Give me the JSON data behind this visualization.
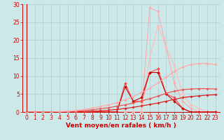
{
  "x": [
    0,
    1,
    2,
    3,
    4,
    5,
    6,
    7,
    8,
    9,
    10,
    11,
    12,
    13,
    14,
    15,
    16,
    17,
    18,
    19,
    20,
    21,
    22,
    23
  ],
  "bg_color": "#cce8e8",
  "grid_color": "#aacccc",
  "line_color": "#cc0000",
  "yticks": [
    0,
    5,
    10,
    15,
    20,
    25,
    30
  ],
  "ylim": [
    0,
    30
  ],
  "xlim": [
    -0.5,
    23.5
  ],
  "xlabel": "Vent moyen/en rafales ( km/h )",
  "xlabel_fontsize": 6.5,
  "tick_fontsize": 5.5,
  "series": [
    {
      "y": [
        0,
        0,
        0,
        0,
        0,
        0,
        0,
        0,
        0,
        0,
        0,
        0,
        0,
        0,
        0,
        29,
        28,
        18,
        8,
        3,
        1,
        0,
        0,
        0
      ],
      "color": "#ffaaaa",
      "lw": 0.8,
      "ms": 2.0
    },
    {
      "y": [
        0,
        0,
        0,
        0,
        0,
        0,
        0,
        0,
        0,
        0,
        0,
        0,
        0,
        0,
        0,
        15,
        24,
        18,
        13,
        5,
        2,
        1,
        0,
        0
      ],
      "color": "#ffbbbb",
      "lw": 0.8,
      "ms": 2.0
    },
    {
      "y": [
        0,
        0,
        0,
        0,
        0,
        0,
        0,
        0,
        0,
        0,
        0,
        0,
        8,
        3,
        3,
        11,
        12,
        5,
        4,
        1,
        0,
        0,
        0,
        0
      ],
      "color": "#ff4444",
      "lw": 0.8,
      "ms": 2.0
    },
    {
      "y": [
        0,
        0,
        0,
        0,
        0,
        0,
        0,
        0,
        0,
        0,
        0,
        0,
        7,
        3,
        4,
        11,
        11,
        5,
        3,
        1,
        0,
        0,
        0,
        0
      ],
      "color": "#cc0000",
      "lw": 0.8,
      "ms": 2.0
    },
    {
      "y": [
        0,
        0,
        0,
        0,
        0,
        0,
        0,
        0.1,
        0.2,
        0.3,
        0.5,
        0.7,
        1.0,
        1.3,
        1.7,
        2.1,
        2.5,
        3.0,
        3.5,
        4.0,
        4.3,
        4.5,
        4.7,
        4.8
      ],
      "color": "#dd2222",
      "lw": 0.9,
      "ms": 1.8
    },
    {
      "y": [
        0,
        0,
        0,
        0,
        0,
        0.1,
        0.2,
        0.4,
        0.6,
        0.9,
        1.2,
        1.6,
        2.0,
        2.5,
        3.1,
        3.7,
        4.4,
        5.2,
        5.8,
        6.2,
        6.4,
        6.5,
        6.5,
        6.4
      ],
      "color": "#ee5555",
      "lw": 0.9,
      "ms": 1.8
    },
    {
      "y": [
        0,
        0,
        0,
        0,
        0.1,
        0.2,
        0.4,
        0.7,
        1.1,
        1.5,
        2.0,
        2.6,
        3.4,
        4.3,
        5.4,
        6.6,
        8.1,
        9.7,
        11.3,
        12.5,
        13.2,
        13.5,
        13.5,
        13.2
      ],
      "color": "#ffaaaa",
      "lw": 0.9,
      "ms": 1.8
    }
  ]
}
